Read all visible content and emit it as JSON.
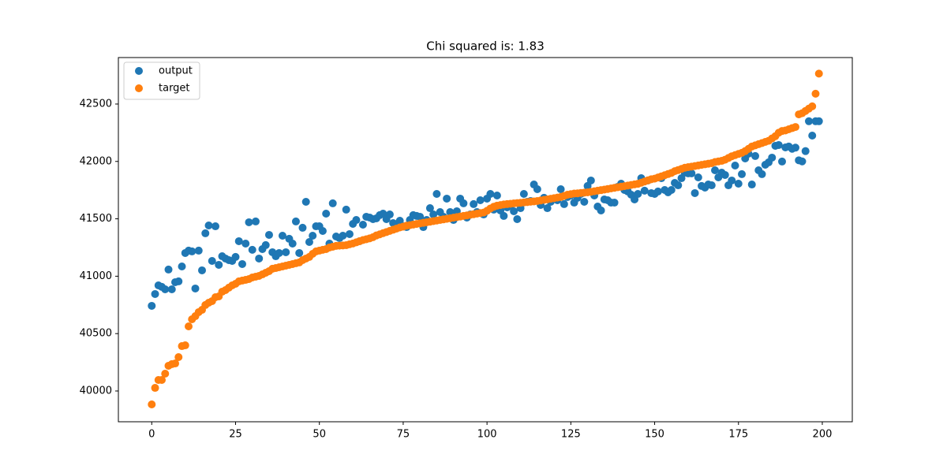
{
  "chart_data": {
    "type": "scatter",
    "title": "Chi squared is: 1.83",
    "x": [
      0,
      1,
      2,
      3,
      4,
      5,
      6,
      7,
      8,
      9,
      10,
      11,
      12,
      13,
      14,
      15,
      16,
      17,
      18,
      19,
      20,
      21,
      22,
      23,
      24,
      25,
      26,
      27,
      28,
      29,
      30,
      31,
      32,
      33,
      34,
      35,
      36,
      37,
      38,
      39,
      40,
      41,
      42,
      43,
      44,
      45,
      46,
      47,
      48,
      49,
      50,
      51,
      52,
      53,
      54,
      55,
      56,
      57,
      58,
      59,
      60,
      61,
      62,
      63,
      64,
      65,
      66,
      67,
      68,
      69,
      70,
      71,
      72,
      73,
      74,
      75,
      76,
      77,
      78,
      79,
      80,
      81,
      82,
      83,
      84,
      85,
      86,
      87,
      88,
      89,
      90,
      91,
      92,
      93,
      94,
      95,
      96,
      97,
      98,
      99,
      100,
      101,
      102,
      103,
      104,
      105,
      106,
      107,
      108,
      109,
      110,
      111,
      112,
      113,
      114,
      115,
      116,
      117,
      118,
      119,
      120,
      121,
      122,
      123,
      124,
      125,
      126,
      127,
      128,
      129,
      130,
      131,
      132,
      133,
      134,
      135,
      136,
      137,
      138,
      139,
      140,
      141,
      142,
      143,
      144,
      145,
      146,
      147,
      148,
      149,
      150,
      151,
      152,
      153,
      154,
      155,
      156,
      157,
      158,
      159,
      160,
      161,
      162,
      163,
      164,
      165,
      166,
      167,
      168,
      169,
      170,
      171,
      172,
      173,
      174,
      175,
      176,
      177,
      178,
      179,
      180,
      181,
      182,
      183,
      184,
      185,
      186,
      187,
      188,
      189,
      190,
      191,
      192,
      193,
      194,
      195,
      196,
      197,
      198,
      199
    ],
    "series": [
      {
        "name": "output",
        "color": "#1f77b4",
        "values": [
          40742,
          40845,
          40920,
          40907,
          40886,
          41058,
          40886,
          40948,
          40955,
          41085,
          41202,
          41223,
          41216,
          40893,
          41223,
          41051,
          41374,
          41442,
          41133,
          41435,
          41099,
          41174,
          41154,
          41140,
          41133,
          41168,
          41305,
          41106,
          41284,
          41470,
          41230,
          41477,
          41154,
          41236,
          41271,
          41360,
          41209,
          41174,
          41202,
          41353,
          41209,
          41326,
          41284,
          41477,
          41202,
          41422,
          41648,
          41298,
          41353,
          41435,
          41435,
          41394,
          41545,
          41284,
          41635,
          41346,
          41332,
          41353,
          41580,
          41367,
          41456,
          41490,
          41305,
          41449,
          41518,
          41511,
          41497,
          41504,
          41532,
          41545,
          41497,
          41538,
          41463,
          41449,
          41483,
          41435,
          41428,
          41490,
          41532,
          41525,
          41518,
          41428,
          41490,
          41593,
          41538,
          41717,
          41559,
          41518,
          41676,
          41559,
          41490,
          41566,
          41676,
          41635,
          41511,
          41538,
          41628,
          41559,
          41662,
          41538,
          41676,
          41717,
          41580,
          41703,
          41573,
          41525,
          41600,
          41614,
          41566,
          41497,
          41593,
          41717,
          41648,
          41655,
          41799,
          41758,
          41621,
          41683,
          41593,
          41648,
          41676,
          41662,
          41758,
          41628,
          41690,
          41703,
          41641,
          41683,
          41717,
          41648,
          41786,
          41834,
          41703,
          41607,
          41573,
          41669,
          41662,
          41641,
          41641,
          41779,
          41806,
          41751,
          41738,
          41710,
          41669,
          41717,
          41854,
          41745,
          41834,
          41724,
          41717,
          41738,
          41854,
          41751,
          41731,
          41751,
          41813,
          41792,
          41854,
          41902,
          41896,
          41896,
          41724,
          41861,
          41786,
          41772,
          41799,
          41792,
          41923,
          41861,
          41902,
          41882,
          41792,
          41834,
          41964,
          41806,
          41889,
          42026,
          42067,
          41799,
          42047,
          41923,
          41889,
          41971,
          41992,
          42033,
          42136,
          42143,
          41999,
          42122,
          42130,
          42110,
          42120,
          42010,
          42000,
          42090,
          42350,
          42225,
          42350,
          42350
        ]
      },
      {
        "name": "target",
        "color": "#ff7f0e",
        "values": [
          39883,
          40027,
          40096,
          40096,
          40151,
          40220,
          40234,
          40240,
          40295,
          40391,
          40398,
          40563,
          40625,
          40652,
          40687,
          40707,
          40749,
          40769,
          40783,
          40817,
          40824,
          40865,
          40879,
          40900,
          40920,
          40934,
          40955,
          40962,
          40968,
          40975,
          40989,
          40996,
          41003,
          41016,
          41030,
          41044,
          41065,
          41071,
          41078,
          41085,
          41092,
          41099,
          41106,
          41113,
          41120,
          41140,
          41154,
          41168,
          41195,
          41216,
          41223,
          41230,
          41236,
          41250,
          41257,
          41264,
          41266,
          41268,
          41270,
          41278,
          41285,
          41295,
          41305,
          41315,
          41322,
          41330,
          41340,
          41355,
          41365,
          41375,
          41385,
          41395,
          41405,
          41415,
          41425,
          41432,
          41440,
          41445,
          41450,
          41455,
          41460,
          41465,
          41470,
          41475,
          41480,
          41485,
          41490,
          41495,
          41500,
          41505,
          41510,
          41515,
          41520,
          41525,
          41530,
          41535,
          41540,
          41545,
          41550,
          41555,
          41570,
          41590,
          41605,
          41615,
          41620,
          41625,
          41628,
          41631,
          41634,
          41637,
          41640,
          41643,
          41646,
          41649,
          41652,
          41655,
          41660,
          41665,
          41670,
          41675,
          41680,
          41685,
          41690,
          41700,
          41710,
          41715,
          41720,
          41722,
          41725,
          41728,
          41731,
          41735,
          41740,
          41745,
          41750,
          41755,
          41760,
          41765,
          41770,
          41775,
          41780,
          41785,
          41790,
          41795,
          41800,
          41805,
          41815,
          41825,
          41835,
          41845,
          41850,
          41860,
          41870,
          41880,
          41890,
          41900,
          41915,
          41925,
          41935,
          41945,
          41950,
          41955,
          41960,
          41965,
          41970,
          41975,
          41980,
          41985,
          41995,
          42000,
          42005,
          42015,
          42030,
          42045,
          42055,
          42065,
          42075,
          42090,
          42110,
          42130,
          42140,
          42150,
          42160,
          42170,
          42180,
          42200,
          42220,
          42250,
          42265,
          42270,
          42280,
          42290,
          42300,
          42410,
          42420,
          42440,
          42460,
          42480,
          42590,
          42765
        ]
      }
    ],
    "xlim": [
      -9.95,
      208.95
    ],
    "ylim": [
      39732,
      42905
    ],
    "xticks": [
      0,
      25,
      50,
      75,
      100,
      125,
      150,
      175,
      200
    ],
    "yticks": [
      40000,
      40500,
      41000,
      41500,
      42000,
      42500
    ],
    "legend": "upper left"
  }
}
